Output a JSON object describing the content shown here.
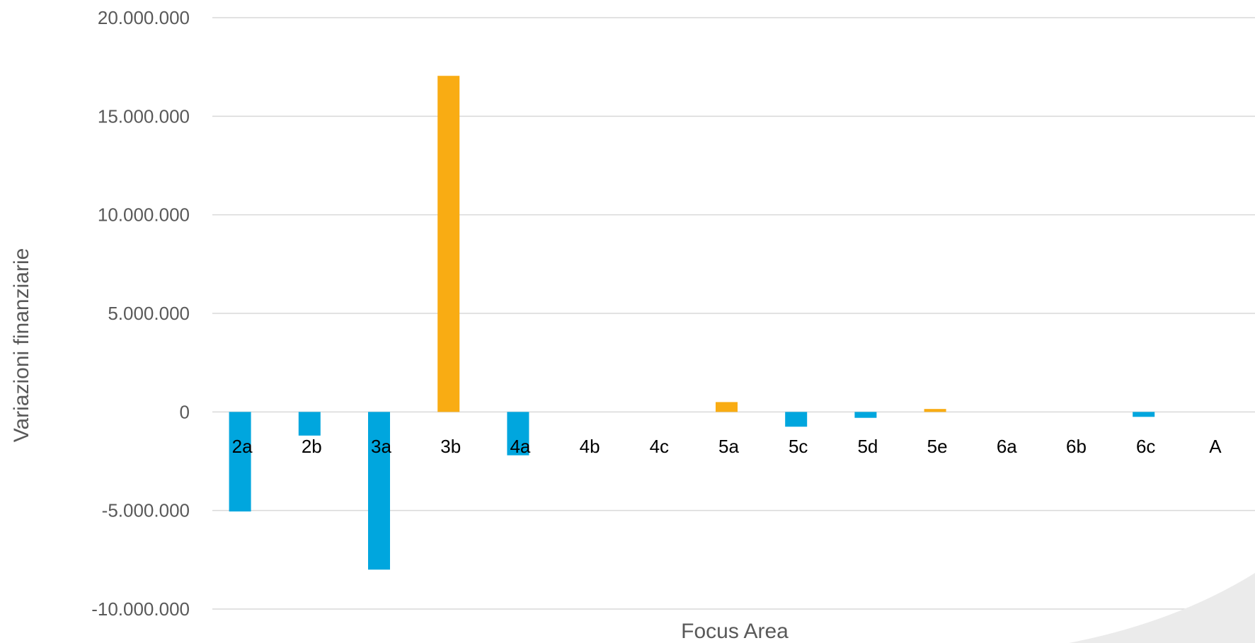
{
  "chart_data": {
    "type": "bar",
    "title": "",
    "xlabel": "Focus Area",
    "ylabel": "Variazioni finanziarie",
    "ylim": [
      -10000000,
      20000000
    ],
    "yticks": [
      20000000,
      15000000,
      10000000,
      5000000,
      0,
      -5000000,
      -10000000
    ],
    "ytick_labels": [
      "20.000.000",
      "15.000.000",
      "10.000.000",
      "5.000.000",
      "0",
      "-5.000.000",
      "-10.000.000"
    ],
    "grid": true,
    "legend": "none",
    "colors": {
      "positive": "#F9AC13",
      "negative": "#00A6DE"
    },
    "categories": [
      "2a",
      "2b",
      "3a",
      "3b",
      "4a",
      "4b",
      "4c",
      "5a",
      "5c",
      "5d",
      "5e",
      "6a",
      "6b",
      "6c",
      "A"
    ],
    "values": [
      -5050000,
      -1200000,
      -8000000,
      17050000,
      -2200000,
      0,
      0,
      500000,
      -750000,
      -300000,
      150000,
      0,
      0,
      -250000,
      0
    ]
  }
}
